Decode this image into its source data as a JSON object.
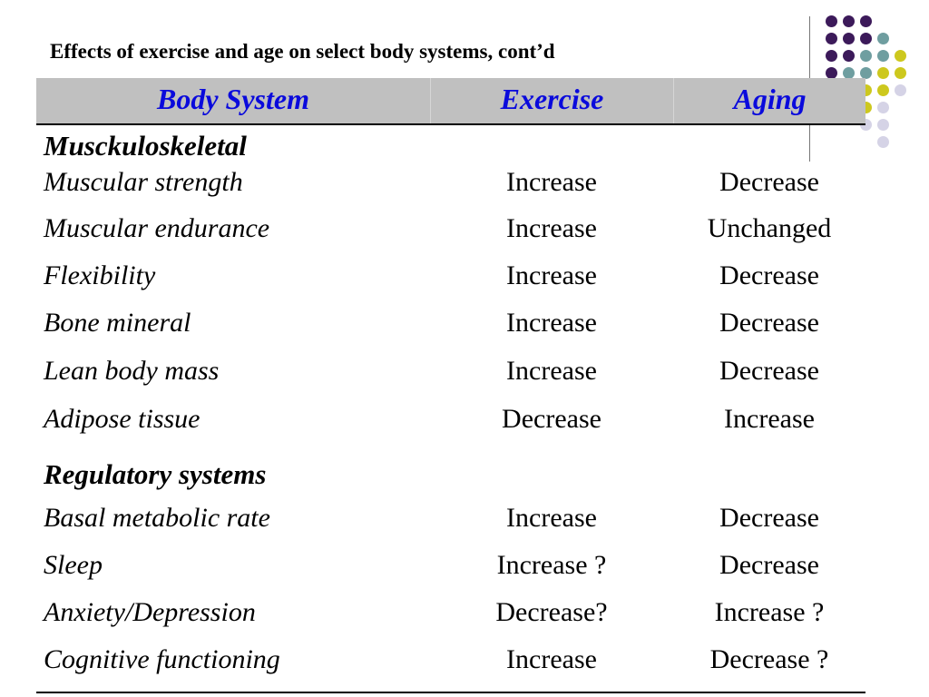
{
  "title": "Effects of exercise and age on select body systems, cont’d",
  "header": {
    "col1": "Body System",
    "col2": "Exercise",
    "col3": "Aging"
  },
  "colors": {
    "header_bg": "#c0c0c0",
    "header_text": "#0a0adc",
    "dot_purple": "#3c1a5a",
    "dot_teal": "#6f9ea0",
    "dot_yellow": "#cdc81e",
    "dot_lavender": "#d5d3e6"
  },
  "sections": [
    {
      "name": "Musckuloskeletal",
      "rows": [
        {
          "label": "Muscular strength",
          "exercise": "Increase",
          "aging": "Decrease"
        },
        {
          "label": "Muscular endurance",
          "exercise": "Increase",
          "aging": "Unchanged"
        },
        {
          "label": "Flexibility",
          "exercise": "Increase",
          "aging": "Decrease"
        },
        {
          "label": "Bone mineral",
          "exercise": "Increase",
          "aging": "Decrease"
        },
        {
          "label": "Lean body mass",
          "exercise": "Increase",
          "aging": "Decrease"
        },
        {
          "label": "Adipose tissue",
          "exercise": "Decrease",
          "aging": "Increase"
        }
      ]
    },
    {
      "name": "Regulatory systems",
      "rows": [
        {
          "label": "Basal metabolic rate",
          "exercise": "Increase",
          "aging": "Decrease"
        },
        {
          "label": "Sleep",
          "exercise": "Increase ?",
          "aging": "Decrease"
        },
        {
          "label": "Anxiety/Depression",
          "exercise": "Decrease?",
          "aging": "Increase ?"
        },
        {
          "label": "Cognitive functioning",
          "exercise": "Increase",
          "aging": "Decrease ?"
        }
      ]
    }
  ]
}
